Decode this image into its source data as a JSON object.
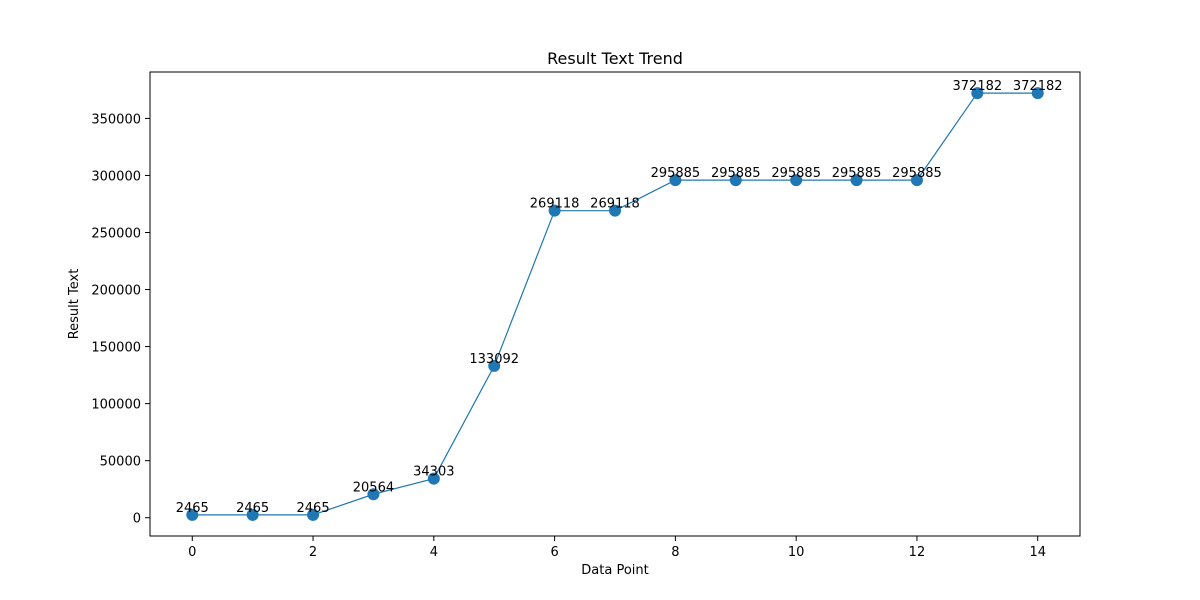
{
  "chart_data": {
    "type": "line",
    "title": "Result Text Trend",
    "xlabel": "Data Point",
    "ylabel": "Result Text",
    "x": [
      0,
      1,
      2,
      3,
      4,
      5,
      6,
      7,
      8,
      9,
      10,
      11,
      12,
      13,
      14
    ],
    "values": [
      2465,
      2465,
      2465,
      20564,
      34303,
      133092,
      269118,
      269118,
      295885,
      295885,
      295885,
      295885,
      295885,
      372182,
      372182
    ],
    "data_labels": [
      "2465",
      "2465",
      "2465",
      "20564",
      "34303",
      "133092",
      "269118",
      "269118",
      "295885",
      "295885",
      "295885",
      "295885",
      "295885",
      "372182",
      "372182"
    ],
    "xticks": [
      0,
      2,
      4,
      6,
      8,
      10,
      12,
      14
    ],
    "xtick_labels": [
      "0",
      "2",
      "4",
      "6",
      "8",
      "10",
      "12",
      "14"
    ],
    "yticks": [
      0,
      50000,
      100000,
      150000,
      200000,
      250000,
      300000,
      350000
    ],
    "ytick_labels": [
      "0",
      "50000",
      "100000",
      "150000",
      "200000",
      "250000",
      "300000",
      "350000"
    ],
    "xlim": [
      -0.7,
      14.7
    ],
    "ylim": [
      -16021,
      390668
    ],
    "grid": false,
    "color": "#1f77b4"
  }
}
